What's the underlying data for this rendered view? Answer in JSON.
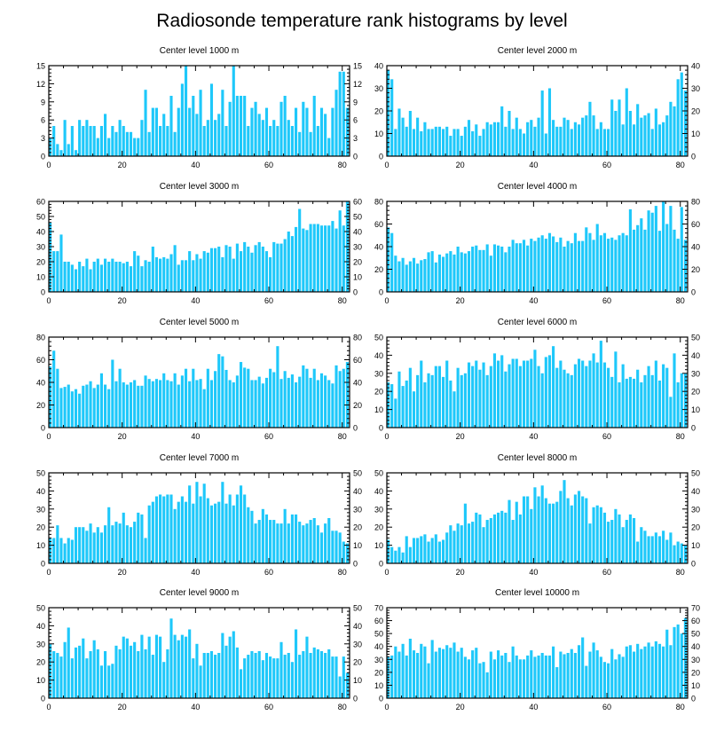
{
  "title": "Radiosonde temperature rank histograms by level",
  "bar_color": "#1EC8FA",
  "axis_color": "#000000",
  "chart_data": [
    {
      "type": "bar",
      "title": "Center level 1000 m",
      "xlim": [
        0,
        82
      ],
      "ylim": [
        0,
        15
      ],
      "xticks": [
        0,
        20,
        40,
        60,
        80
      ],
      "yticks": [
        0,
        3,
        6,
        9,
        12,
        15
      ],
      "values": [
        3,
        5,
        2,
        1,
        6,
        2,
        5,
        1,
        6,
        5,
        6,
        5,
        5,
        3,
        5,
        7,
        3,
        5,
        4,
        6,
        5,
        4,
        4,
        3,
        3,
        6,
        11,
        4,
        8,
        8,
        5,
        7,
        5,
        10,
        4,
        8,
        12,
        15,
        8,
        10,
        7,
        11,
        5,
        6,
        12,
        6,
        7,
        11,
        5,
        9,
        15,
        10,
        10,
        10,
        5,
        8,
        9,
        7,
        6,
        8,
        5,
        6,
        5,
        9,
        10,
        6,
        5,
        8,
        4,
        9,
        8,
        4,
        10,
        5,
        8,
        7,
        3,
        8,
        11,
        14,
        14,
        8
      ]
    },
    {
      "type": "bar",
      "title": "Center level 2000 m",
      "xlim": [
        0,
        82
      ],
      "ylim": [
        0,
        40
      ],
      "xticks": [
        0,
        20,
        40,
        60,
        80
      ],
      "yticks": [
        0,
        10,
        20,
        30,
        40
      ],
      "values": [
        38,
        34,
        12,
        21,
        17,
        13,
        20,
        12,
        17,
        11,
        15,
        12,
        12,
        13,
        13,
        12,
        13,
        9,
        12,
        12,
        9,
        13,
        16,
        11,
        14,
        9,
        12,
        15,
        14,
        15,
        15,
        22,
        13,
        20,
        12,
        17,
        12,
        10,
        15,
        16,
        13,
        17,
        29,
        10,
        30,
        16,
        13,
        13,
        17,
        16,
        12,
        15,
        14,
        17,
        18,
        24,
        18,
        12,
        15,
        12,
        12,
        25,
        20,
        25,
        14,
        30,
        20,
        14,
        23,
        17,
        18,
        19,
        12,
        21,
        14,
        15,
        18,
        24,
        22,
        34,
        37,
        29
      ]
    },
    {
      "type": "bar",
      "title": "Center level 3000 m",
      "xlim": [
        0,
        82
      ],
      "ylim": [
        0,
        60
      ],
      "xticks": [
        0,
        20,
        40,
        60,
        80
      ],
      "yticks": [
        0,
        10,
        20,
        30,
        40,
        50,
        60
      ],
      "values": [
        46,
        27,
        27,
        38,
        20,
        20,
        18,
        15,
        20,
        17,
        22,
        15,
        20,
        22,
        18,
        22,
        20,
        22,
        20,
        20,
        19,
        20,
        17,
        27,
        24,
        17,
        21,
        20,
        30,
        23,
        22,
        23,
        22,
        25,
        31,
        18,
        21,
        21,
        27,
        21,
        25,
        22,
        27,
        26,
        29,
        29,
        30,
        23,
        31,
        30,
        22,
        32,
        27,
        33,
        30,
        26,
        31,
        33,
        30,
        27,
        23,
        33,
        32,
        32,
        35,
        40,
        37,
        43,
        55,
        42,
        41,
        45,
        45,
        45,
        44,
        44,
        44,
        47,
        42,
        54,
        44,
        60
      ]
    },
    {
      "type": "bar",
      "title": "Center level 4000 m",
      "xlim": [
        0,
        82
      ],
      "ylim": [
        0,
        80
      ],
      "xticks": [
        0,
        20,
        40,
        60,
        80
      ],
      "yticks": [
        0,
        20,
        40,
        60,
        80
      ],
      "values": [
        57,
        52,
        32,
        27,
        30,
        24,
        27,
        30,
        25,
        28,
        29,
        35,
        36,
        26,
        33,
        31,
        34,
        36,
        33,
        40,
        35,
        34,
        36,
        40,
        41,
        37,
        37,
        42,
        32,
        42,
        41,
        40,
        35,
        40,
        46,
        43,
        43,
        46,
        41,
        47,
        45,
        48,
        50,
        47,
        52,
        49,
        44,
        48,
        40,
        45,
        43,
        52,
        45,
        45,
        57,
        52,
        46,
        60,
        50,
        52,
        47,
        48,
        46,
        50,
        52,
        50,
        73,
        55,
        59,
        65,
        55,
        72,
        70,
        76,
        54,
        80,
        60,
        76,
        55,
        47,
        75,
        46
      ]
    },
    {
      "type": "bar",
      "title": "Center level 5000 m",
      "xlim": [
        0,
        82
      ],
      "ylim": [
        0,
        80
      ],
      "xticks": [
        0,
        20,
        40,
        60,
        80
      ],
      "yticks": [
        0,
        20,
        40,
        60,
        80
      ],
      "values": [
        54,
        68,
        52,
        35,
        36,
        38,
        32,
        34,
        30,
        37,
        38,
        41,
        35,
        38,
        48,
        38,
        34,
        60,
        41,
        52,
        40,
        38,
        40,
        42,
        37,
        37,
        46,
        43,
        41,
        43,
        42,
        48,
        42,
        41,
        48,
        38,
        46,
        52,
        41,
        52,
        42,
        43,
        34,
        52,
        42,
        50,
        65,
        63,
        51,
        42,
        40,
        46,
        58,
        53,
        52,
        42,
        42,
        45,
        39,
        44,
        52,
        49,
        72,
        43,
        50,
        44,
        47,
        40,
        45,
        55,
        52,
        44,
        52,
        42,
        48,
        46,
        42,
        39,
        55,
        50,
        52,
        58
      ]
    },
    {
      "type": "bar",
      "title": "Center level 6000 m",
      "xlim": [
        0,
        82
      ],
      "ylim": [
        0,
        50
      ],
      "xticks": [
        0,
        20,
        40,
        60,
        80
      ],
      "yticks": [
        0,
        10,
        20,
        30,
        40,
        50
      ],
      "values": [
        25,
        24,
        16,
        31,
        23,
        26,
        33,
        20,
        29,
        37,
        25,
        30,
        29,
        34,
        34,
        28,
        37,
        26,
        20,
        33,
        29,
        30,
        36,
        34,
        37,
        32,
        36,
        29,
        34,
        41,
        37,
        40,
        31,
        35,
        38,
        38,
        34,
        37,
        37,
        38,
        43,
        34,
        30,
        39,
        40,
        45,
        33,
        37,
        32,
        30,
        29,
        35,
        38,
        37,
        34,
        37,
        41,
        36,
        48,
        36,
        33,
        28,
        42,
        25,
        35,
        27,
        28,
        27,
        32,
        25,
        29,
        34,
        29,
        37,
        26,
        35,
        33,
        17,
        41,
        25,
        30,
        30
      ]
    },
    {
      "type": "bar",
      "title": "Center level 7000 m",
      "xlim": [
        0,
        82
      ],
      "ylim": [
        0,
        50
      ],
      "xticks": [
        0,
        20,
        40,
        60,
        80
      ],
      "yticks": [
        0,
        10,
        20,
        30,
        40,
        50
      ],
      "values": [
        14,
        14,
        21,
        14,
        11,
        14,
        13,
        20,
        20,
        20,
        18,
        22,
        17,
        20,
        17,
        21,
        31,
        21,
        23,
        22,
        28,
        21,
        20,
        23,
        28,
        27,
        14,
        32,
        34,
        37,
        38,
        37,
        38,
        38,
        30,
        34,
        37,
        34,
        43,
        33,
        45,
        37,
        44,
        36,
        32,
        33,
        34,
        45,
        33,
        38,
        32,
        38,
        43,
        38,
        31,
        29,
        22,
        24,
        30,
        27,
        24,
        24,
        22,
        22,
        30,
        22,
        27,
        27,
        23,
        21,
        22,
        24,
        25,
        21,
        17,
        22,
        25,
        18,
        18,
        17,
        12,
        11
      ]
    },
    {
      "type": "bar",
      "title": "Center level 8000 m",
      "xlim": [
        0,
        82
      ],
      "ylim": [
        0,
        50
      ],
      "xticks": [
        0,
        20,
        40,
        60,
        80
      ],
      "yticks": [
        0,
        10,
        20,
        30,
        40,
        50
      ],
      "values": [
        13,
        9,
        7,
        9,
        6,
        15,
        9,
        14,
        14,
        15,
        16,
        12,
        14,
        16,
        12,
        13,
        17,
        21,
        18,
        22,
        21,
        33,
        22,
        23,
        28,
        27,
        20,
        24,
        25,
        27,
        28,
        29,
        28,
        35,
        24,
        34,
        27,
        37,
        37,
        30,
        42,
        37,
        43,
        36,
        33,
        33,
        34,
        40,
        46,
        36,
        32,
        38,
        40,
        37,
        36,
        22,
        31,
        32,
        31,
        28,
        23,
        24,
        30,
        27,
        20,
        24,
        27,
        25,
        12,
        20,
        18,
        15,
        15,
        17,
        15,
        18,
        13,
        17,
        10,
        12,
        11,
        10
      ]
    },
    {
      "type": "bar",
      "title": "Center level 9000 m",
      "xlim": [
        0,
        82
      ],
      "ylim": [
        0,
        50
      ],
      "xticks": [
        0,
        20,
        40,
        60,
        80
      ],
      "yticks": [
        0,
        10,
        20,
        30,
        40,
        50
      ],
      "values": [
        30,
        26,
        25,
        23,
        31,
        39,
        22,
        28,
        29,
        33,
        22,
        26,
        32,
        27,
        18,
        26,
        18,
        19,
        29,
        27,
        34,
        33,
        29,
        31,
        26,
        35,
        27,
        34,
        24,
        35,
        34,
        20,
        27,
        44,
        35,
        32,
        35,
        34,
        38,
        22,
        30,
        18,
        25,
        25,
        26,
        24,
        25,
        36,
        29,
        34,
        37,
        28,
        16,
        22,
        24,
        26,
        25,
        26,
        21,
        25,
        23,
        22,
        22,
        31,
        24,
        25,
        20,
        38,
        24,
        26,
        34,
        25,
        28,
        27,
        26,
        25,
        27,
        23,
        23,
        12,
        23,
        14
      ]
    },
    {
      "type": "bar",
      "title": "Center level 10000 m",
      "xlim": [
        0,
        82
      ],
      "ylim": [
        0,
        70
      ],
      "xticks": [
        0,
        20,
        40,
        60,
        80
      ],
      "yticks": [
        0,
        10,
        20,
        30,
        40,
        50,
        60,
        70
      ],
      "values": [
        32,
        33,
        40,
        36,
        42,
        33,
        46,
        37,
        35,
        42,
        40,
        27,
        45,
        36,
        39,
        38,
        41,
        39,
        43,
        36,
        39,
        32,
        30,
        37,
        39,
        27,
        28,
        20,
        36,
        30,
        37,
        33,
        35,
        28,
        40,
        33,
        30,
        30,
        33,
        37,
        32,
        33,
        35,
        33,
        33,
        40,
        24,
        36,
        34,
        35,
        38,
        35,
        41,
        47,
        25,
        36,
        43,
        37,
        32,
        28,
        27,
        38,
        30,
        34,
        32,
        40,
        41,
        36,
        42,
        38,
        40,
        43,
        40,
        44,
        42,
        40,
        53,
        41,
        55,
        57,
        50,
        62
      ]
    }
  ]
}
